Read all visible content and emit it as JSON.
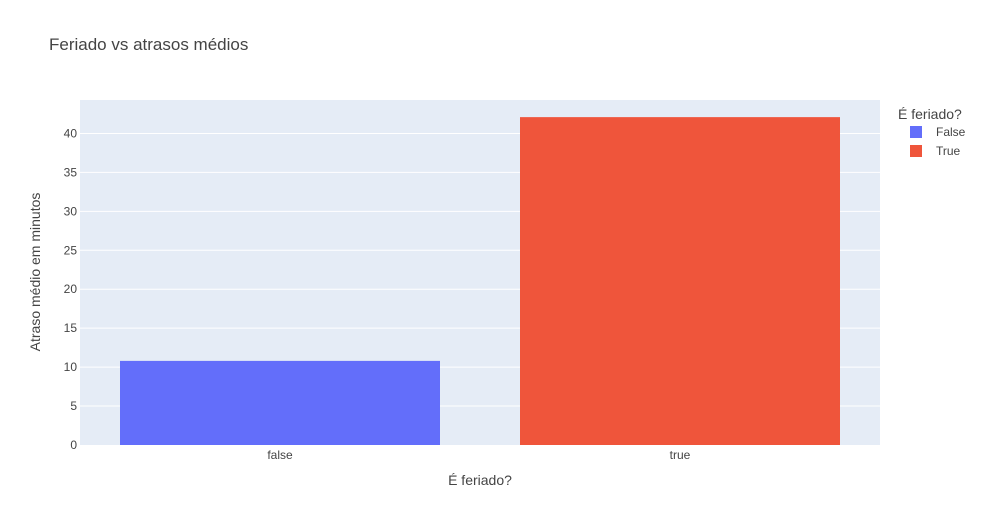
{
  "chart_data": {
    "type": "bar",
    "title": "Feriado vs atrasos médios",
    "xlabel": "É feriado?",
    "ylabel": "Atraso médio em minutos",
    "categories": [
      "false",
      "true"
    ],
    "series": [
      {
        "name": "False",
        "category": "false",
        "value": 10.8,
        "color": "#636efa"
      },
      {
        "name": "True",
        "category": "true",
        "value": 42.1,
        "color": "#ef553b"
      }
    ],
    "ylim": [
      0,
      44.3
    ],
    "yticks": [
      0,
      5,
      10,
      15,
      20,
      25,
      30,
      35,
      40
    ],
    "grid": true,
    "legend": {
      "title": "É feriado?",
      "placement": "top-right"
    },
    "plot_background": "#e5ecf6"
  }
}
